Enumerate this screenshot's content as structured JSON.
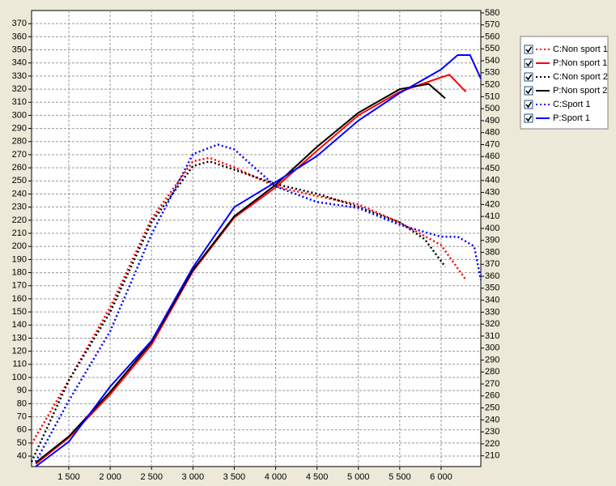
{
  "chart_data": {
    "type": "line",
    "xlim": [
      1050,
      6480
    ],
    "ylim": [
      32,
      380
    ],
    "y2lim": [
      201,
      582
    ],
    "xticks": [
      {
        "value": 1500,
        "label": "1 500"
      },
      {
        "value": 2000,
        "label": "2 000"
      },
      {
        "value": 2500,
        "label": "2 500"
      },
      {
        "value": 3000,
        "label": "3 000"
      },
      {
        "value": 3500,
        "label": "3 500"
      },
      {
        "value": 4000,
        "label": "4 000"
      },
      {
        "value": 4500,
        "label": "4 500"
      },
      {
        "value": 5000,
        "label": "5 000"
      },
      {
        "value": 5500,
        "label": "5 500"
      },
      {
        "value": 6000,
        "label": "6 000"
      }
    ],
    "yticks": [
      40,
      50,
      60,
      70,
      80,
      90,
      100,
      110,
      120,
      130,
      140,
      150,
      160,
      170,
      180,
      190,
      200,
      210,
      220,
      230,
      240,
      250,
      260,
      270,
      280,
      290,
      300,
      310,
      320,
      330,
      340,
      350,
      360,
      370
    ],
    "y2ticks": [
      210,
      220,
      230,
      240,
      250,
      260,
      270,
      280,
      290,
      300,
      310,
      320,
      330,
      340,
      350,
      360,
      370,
      380,
      390,
      400,
      410,
      420,
      430,
      440,
      450,
      460,
      470,
      480,
      490,
      500,
      510,
      520,
      530,
      540,
      550,
      560,
      570,
      580
    ],
    "grid": true,
    "series": [
      {
        "name": "C:Non sport 1",
        "color": "#ff0000",
        "style": "dotted",
        "axis": "y2",
        "x": [
          1050,
          1500,
          2000,
          2500,
          3000,
          3200,
          3500,
          4000,
          4500,
          5000,
          5500,
          6000,
          6300
        ],
        "values": [
          220,
          273,
          334,
          408,
          456,
          459,
          451,
          435,
          427,
          420,
          405,
          386,
          357
        ]
      },
      {
        "name": "P:Non sport 1",
        "color": "#ff0000",
        "style": "solid",
        "x": [
          1100,
          1500,
          2000,
          2500,
          3000,
          3500,
          4000,
          4500,
          5000,
          5500,
          6000,
          6100,
          6300
        ],
        "values": [
          34,
          54,
          87,
          125,
          181,
          222,
          245,
          273,
          300,
          318,
          329,
          331,
          318
        ]
      },
      {
        "name": "C:Non sport 2",
        "color": "#000000",
        "style": "dotted",
        "axis": "y2",
        "x": [
          1050,
          1500,
          2000,
          2500,
          3000,
          3200,
          3500,
          4000,
          4500,
          5000,
          5500,
          5800,
          6050
        ],
        "values": [
          205,
          273,
          330,
          405,
          452,
          456,
          449,
          437,
          429,
          418,
          405,
          391,
          368
        ]
      },
      {
        "name": "P:Non sport 2",
        "color": "#000000",
        "style": "solid",
        "x": [
          1100,
          1500,
          2000,
          2500,
          3000,
          3500,
          4000,
          4500,
          5000,
          5500,
          5850,
          6050
        ],
        "values": [
          35,
          55,
          89,
          127,
          182,
          223,
          247,
          276,
          302,
          320,
          324,
          313
        ]
      },
      {
        "name": "C:Sport 1",
        "color": "#0000ff",
        "style": "dotted",
        "axis": "y2",
        "x": [
          1100,
          1500,
          2000,
          2500,
          3000,
          3300,
          3500,
          4000,
          4500,
          5000,
          5500,
          6000,
          6200,
          6400,
          6480
        ],
        "values": [
          205,
          256,
          314,
          395,
          462,
          470,
          466,
          435,
          422,
          417,
          403,
          393,
          393,
          385,
          357
        ]
      },
      {
        "name": "P:Sport 1",
        "color": "#0000ff",
        "style": "solid",
        "x": [
          1100,
          1500,
          2000,
          2500,
          3000,
          3500,
          4000,
          4500,
          5000,
          5500,
          6000,
          6200,
          6350,
          6480
        ],
        "values": [
          32,
          51,
          93,
          128,
          184,
          230,
          249,
          269,
          296,
          317,
          335,
          346,
          346,
          328
        ]
      }
    ]
  }
}
